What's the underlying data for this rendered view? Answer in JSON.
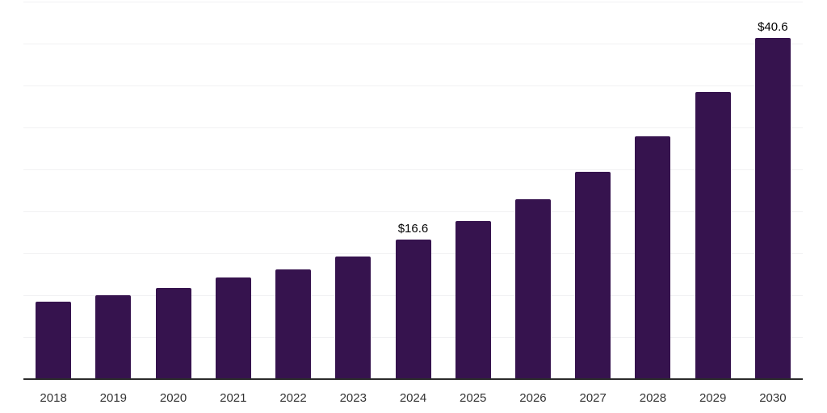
{
  "chart_data": {
    "type": "bar",
    "title": "",
    "xlabel": "",
    "ylabel": "",
    "categories": [
      "2018",
      "2019",
      "2020",
      "2021",
      "2022",
      "2023",
      "2024",
      "2025",
      "2026",
      "2027",
      "2028",
      "2029",
      "2030"
    ],
    "values": [
      9.2,
      10.0,
      10.9,
      12.1,
      13.1,
      14.6,
      16.6,
      18.8,
      21.4,
      24.7,
      28.9,
      34.2,
      40.6
    ],
    "data_labels": {
      "2024": "$16.6",
      "2030": "$40.6"
    },
    "ylim": [
      0,
      45
    ],
    "gridline_step": 5,
    "grid": true,
    "legend": false,
    "y_axis_labels_visible": false,
    "colors": {
      "bar": "#36134E",
      "axis": "#2b2b2b",
      "gridline": "#f1f1f3",
      "tick_label": "#333333",
      "data_label": "#000000",
      "background": "#ffffff"
    }
  }
}
